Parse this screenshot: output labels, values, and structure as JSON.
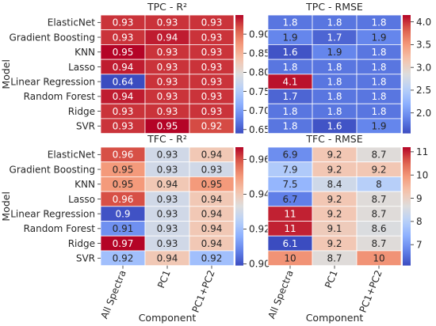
{
  "chart_data": [
    {
      "type": "heatmap",
      "title": "TPC - R²",
      "ylabel": "Model",
      "xlabel": "",
      "rows": [
        "ElasticNet",
        "Gradient Boosting",
        "KNN",
        "Lasso",
        "Linear Regression",
        "Random Forest",
        "Ridge",
        "SVR"
      ],
      "columns": [
        "All Spectra",
        "PC1",
        "PC1+PC2"
      ],
      "values": [
        [
          0.93,
          0.93,
          0.93
        ],
        [
          0.93,
          0.94,
          0.93
        ],
        [
          0.95,
          0.93,
          0.93
        ],
        [
          0.94,
          0.93,
          0.93
        ],
        [
          0.64,
          0.93,
          0.93
        ],
        [
          0.94,
          0.93,
          0.93
        ],
        [
          0.93,
          0.93,
          0.93
        ],
        [
          0.93,
          0.95,
          0.92
        ]
      ],
      "labels": [
        [
          "0.93",
          "0.93",
          "0.93"
        ],
        [
          "0.93",
          "0.94",
          "0.93"
        ],
        [
          "0.95",
          "0.93",
          "0.93"
        ],
        [
          "0.94",
          "0.93",
          "0.93"
        ],
        [
          "0.64",
          "0.93",
          "0.93"
        ],
        [
          "0.94",
          "0.93",
          "0.93"
        ],
        [
          "0.93",
          "0.93",
          "0.93"
        ],
        [
          "0.93",
          "0.95",
          "0.92"
        ]
      ],
      "colorbar": {
        "min": 0.64,
        "max": 0.95,
        "ticks": [
          "0.90",
          "0.85",
          "0.80",
          "0.75",
          "0.70",
          "0.65"
        ]
      },
      "colormap": "coolwarm",
      "show_row_labels": true,
      "show_col_labels": false
    },
    {
      "type": "heatmap",
      "title": "TPC - RMSE",
      "ylabel": "",
      "xlabel": "",
      "rows": [
        "ElasticNet",
        "Gradient Boosting",
        "KNN",
        "Lasso",
        "Linear Regression",
        "Random Forest",
        "Ridge",
        "SVR"
      ],
      "columns": [
        "All Spectra",
        "PC1",
        "PC1+PC2"
      ],
      "values": [
        [
          1.8,
          1.8,
          1.8
        ],
        [
          1.9,
          1.7,
          1.9
        ],
        [
          1.6,
          1.9,
          1.8
        ],
        [
          1.8,
          1.8,
          1.8
        ],
        [
          4.1,
          1.8,
          1.8
        ],
        [
          1.7,
          1.8,
          1.8
        ],
        [
          1.8,
          1.8,
          1.8
        ],
        [
          1.8,
          1.6,
          1.9
        ]
      ],
      "labels": [
        [
          "1.8",
          "1.8",
          "1.8"
        ],
        [
          "1.9",
          "1.7",
          "1.9"
        ],
        [
          "1.6",
          "1.9",
          "1.8"
        ],
        [
          "1.8",
          "1.8",
          "1.8"
        ],
        [
          "4.1",
          "1.8",
          "1.8"
        ],
        [
          "1.7",
          "1.8",
          "1.8"
        ],
        [
          "1.8",
          "1.8",
          "1.8"
        ],
        [
          "1.8",
          "1.6",
          "1.9"
        ]
      ],
      "colorbar": {
        "min": 1.55,
        "max": 4.15,
        "ticks": [
          "4.0",
          "3.5",
          "3.0",
          "2.5",
          "2.0"
        ]
      },
      "colormap": "coolwarm",
      "show_row_labels": false,
      "show_col_labels": false
    },
    {
      "type": "heatmap",
      "title": "TFC - R²",
      "ylabel": "Model",
      "xlabel": "Component",
      "rows": [
        "ElasticNet",
        "Gradient Boosting",
        "KNN",
        "Lasso",
        "Linear Regression",
        "Random Forest",
        "Ridge",
        "SVR"
      ],
      "columns": [
        "All Spectra",
        "PC1",
        "PC1+PC2"
      ],
      "values": [
        [
          0.96,
          0.93,
          0.94
        ],
        [
          0.95,
          0.93,
          0.93
        ],
        [
          0.95,
          0.94,
          0.95
        ],
        [
          0.96,
          0.93,
          0.94
        ],
        [
          0.9,
          0.93,
          0.94
        ],
        [
          0.91,
          0.93,
          0.94
        ],
        [
          0.97,
          0.93,
          0.94
        ],
        [
          0.92,
          0.94,
          0.92
        ]
      ],
      "labels": [
        [
          "0.96",
          "0.93",
          "0.94"
        ],
        [
          "0.95",
          "0.93",
          "0.93"
        ],
        [
          "0.95",
          "0.94",
          "0.95"
        ],
        [
          "0.96",
          "0.93",
          "0.94"
        ],
        [
          "0.9",
          "0.93",
          "0.94"
        ],
        [
          "0.91",
          "0.93",
          "0.94"
        ],
        [
          "0.97",
          "0.93",
          "0.94"
        ],
        [
          "0.92",
          "0.94",
          "0.92"
        ]
      ],
      "colorbar": {
        "min": 0.899,
        "max": 0.967,
        "ticks": [
          "0.96",
          "0.94",
          "0.92",
          "0.90"
        ]
      },
      "colormap": "coolwarm",
      "show_row_labels": true,
      "show_col_labels": true
    },
    {
      "type": "heatmap",
      "title": "TFC - RMSE",
      "ylabel": "",
      "xlabel": "Component",
      "rows": [
        "ElasticNet",
        "Gradient Boosting",
        "KNN",
        "Lasso",
        "Linear Regression",
        "Random Forest",
        "Ridge",
        "SVR"
      ],
      "columns": [
        "All Spectra",
        "PC1",
        "PC1+PC2"
      ],
      "values": [
        [
          6.9,
          9.2,
          8.7
        ],
        [
          7.9,
          9.2,
          9.2
        ],
        [
          7.5,
          8.4,
          8.0
        ],
        [
          6.7,
          9.2,
          8.7
        ],
        [
          11.0,
          9.2,
          8.7
        ],
        [
          11.0,
          9.1,
          8.6
        ],
        [
          6.1,
          9.2,
          8.7
        ],
        [
          10.0,
          8.7,
          10.0
        ]
      ],
      "labels": [
        [
          "6.9",
          "9.2",
          "8.7"
        ],
        [
          "7.9",
          "9.2",
          "9.2"
        ],
        [
          "7.5",
          "8.4",
          "8"
        ],
        [
          "6.7",
          "9.2",
          "8.7"
        ],
        [
          "11",
          "9.2",
          "8.7"
        ],
        [
          "11",
          "9.1",
          "8.6"
        ],
        [
          "6.1",
          "9.2",
          "8.7"
        ],
        [
          "10",
          "8.7",
          "10"
        ]
      ],
      "colorbar": {
        "min": 6.1,
        "max": 11.2,
        "ticks": [
          "11",
          "10",
          "9",
          "8",
          "7"
        ]
      },
      "colormap": "coolwarm",
      "show_row_labels": false,
      "show_col_labels": true
    }
  ]
}
